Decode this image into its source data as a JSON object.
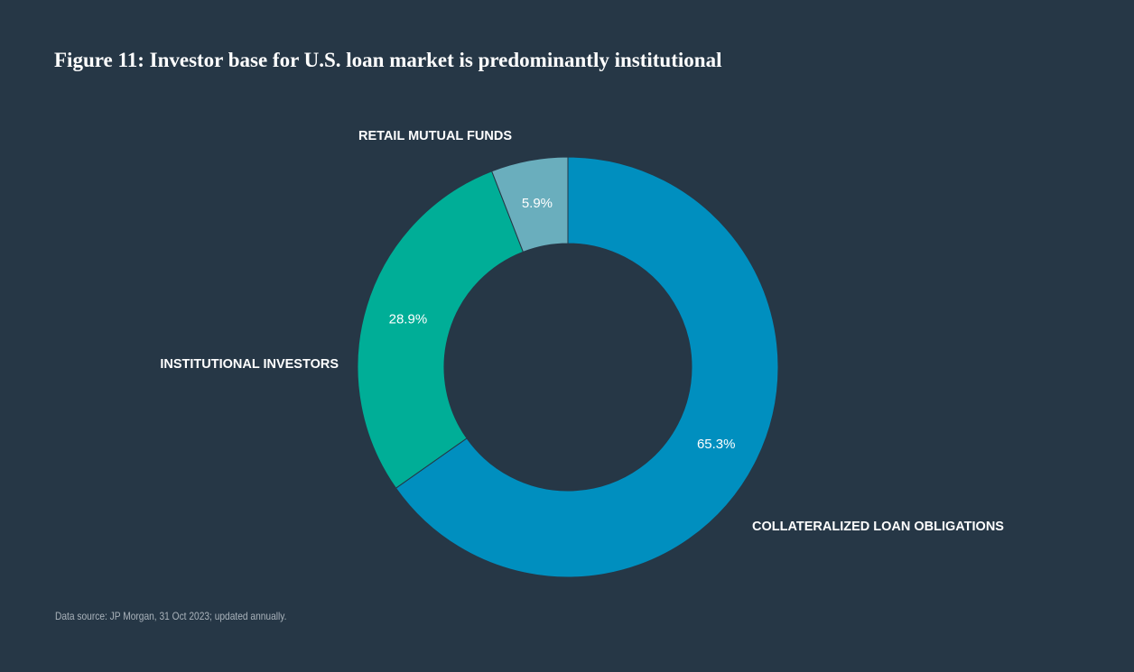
{
  "title": "Figure 11: Investor base for U.S. loan market is predominantly institutional",
  "source": "Data source: JP Morgan, 31 Oct 2023; updated annually.",
  "chart_data": {
    "type": "pie",
    "donut": true,
    "title": "Figure 11: Investor base for U.S. loan market is predominantly institutional",
    "slices": [
      {
        "label": "COLLATERALIZED LOAN OBLIGATIONS",
        "value": 65.3,
        "value_label": "65.3%",
        "color": "#008fbf"
      },
      {
        "label": "INSTITUTIONAL INVESTORS",
        "value": 28.9,
        "value_label": "28.9%",
        "color": "#00ae97"
      },
      {
        "label": "RETAIL MUTUAL FUNDS",
        "value": 5.9,
        "value_label": "5.9%",
        "color": "#6aaebd"
      }
    ],
    "start": "top",
    "direction": "clockwise",
    "background": "#263746"
  }
}
